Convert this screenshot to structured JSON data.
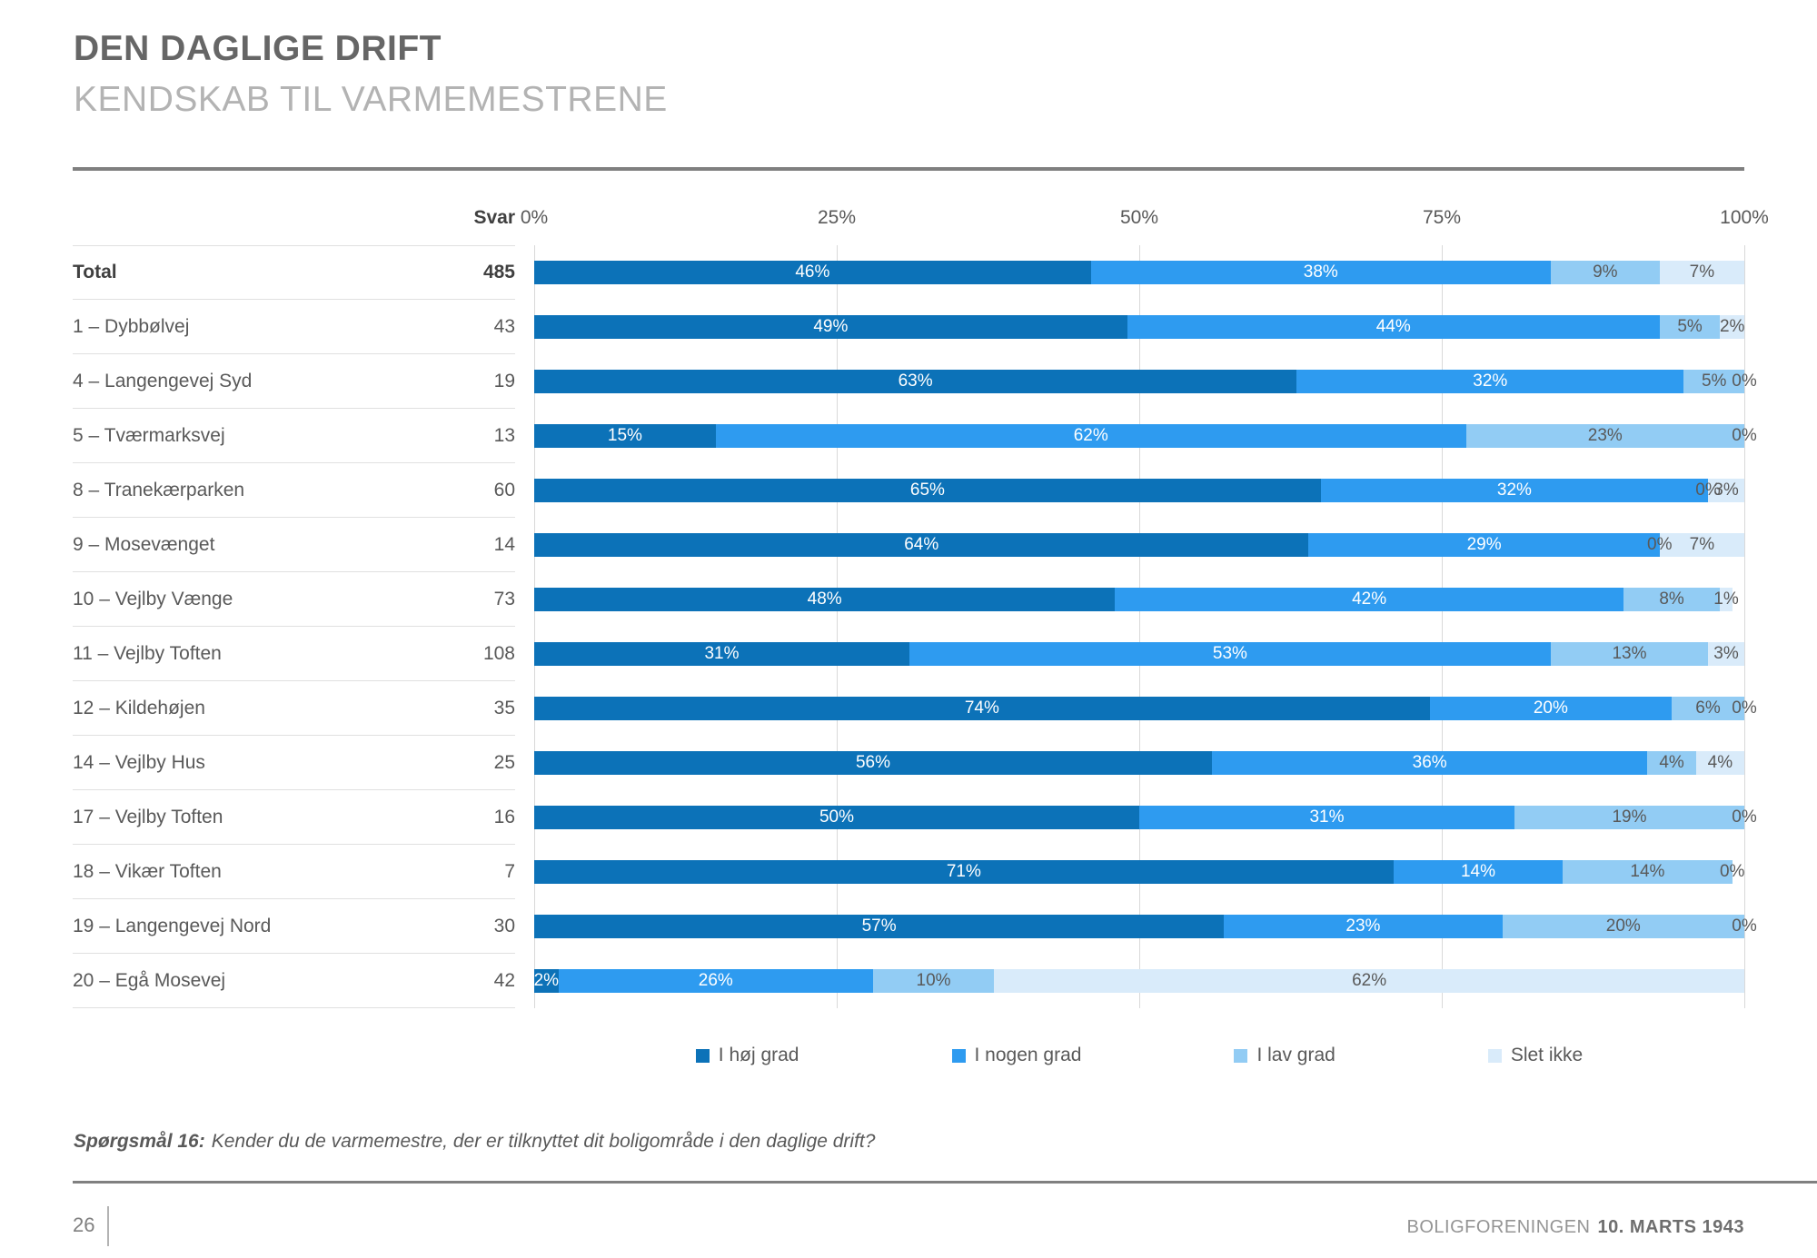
{
  "header": {
    "title": "DEN DAGLIGE DRIFT",
    "subtitle": "KENDSKAB TIL VARMEMESTRENE"
  },
  "chart_data": {
    "type": "bar",
    "stacked": true,
    "orientation": "horizontal",
    "svar_header": "Svar",
    "axis": {
      "ticks": [
        "0%",
        "25%",
        "50%",
        "75%",
        "100%"
      ],
      "range": [
        0,
        100
      ],
      "grid": true
    },
    "legend": {
      "position": "bottom",
      "entries": [
        "I høj grad",
        "I nogen grad",
        "I lav grad",
        "Slet ikke"
      ]
    },
    "colors": {
      "series": [
        "#0c72b8",
        "#2e9bf0",
        "#92ccf4",
        "#d9ebfa"
      ],
      "value_labels": [
        "#ffffff",
        "#ffffff",
        "#595959",
        "#595959"
      ]
    },
    "rows": [
      {
        "label": "Total",
        "svar": 485,
        "bold": true,
        "values": [
          46,
          38,
          9,
          7
        ]
      },
      {
        "label": "1 – Dybbølvej",
        "svar": 43,
        "bold": false,
        "values": [
          49,
          44,
          5,
          2
        ]
      },
      {
        "label": "4 – Langengevej Syd",
        "svar": 19,
        "bold": false,
        "values": [
          63,
          32,
          5,
          0
        ]
      },
      {
        "label": "5 – Tværmarksvej",
        "svar": 13,
        "bold": false,
        "values": [
          15,
          62,
          23,
          0
        ]
      },
      {
        "label": "8 – Tranekærparken",
        "svar": 60,
        "bold": false,
        "values": [
          65,
          32,
          0,
          3
        ]
      },
      {
        "label": "9 – Mosevænget",
        "svar": 14,
        "bold": false,
        "values": [
          64,
          29,
          0,
          7
        ]
      },
      {
        "label": "10 – Vejlby Vænge",
        "svar": 73,
        "bold": false,
        "values": [
          48,
          42,
          8,
          1
        ]
      },
      {
        "label": "11 – Vejlby Toften",
        "svar": 108,
        "bold": false,
        "values": [
          31,
          53,
          13,
          3
        ]
      },
      {
        "label": "12 – Kildehøjen",
        "svar": 35,
        "bold": false,
        "values": [
          74,
          20,
          6,
          0
        ]
      },
      {
        "label": "14 – Vejlby Hus",
        "svar": 25,
        "bold": false,
        "values": [
          56,
          36,
          4,
          4
        ]
      },
      {
        "label": "17 – Vejlby Toften",
        "svar": 16,
        "bold": false,
        "values": [
          50,
          31,
          19,
          0
        ]
      },
      {
        "label": "18 – Vikær Toften",
        "svar": 7,
        "bold": false,
        "values": [
          71,
          14,
          14,
          0
        ]
      },
      {
        "label": "19 – Langengevej Nord",
        "svar": 30,
        "bold": false,
        "values": [
          57,
          23,
          20,
          0
        ]
      },
      {
        "label": "20 – Egå Mosevej",
        "svar": 42,
        "bold": false,
        "values": [
          2,
          26,
          10,
          62
        ]
      }
    ]
  },
  "question": {
    "label": "Spørgsmål 16:",
    "text": "Kender du de varmemestre, der er tilknyttet dit boligområde i den daglige drift?"
  },
  "footer": {
    "page": "26",
    "org": "BOLIGFORENINGEN",
    "date": "10. MARTS 1943"
  }
}
